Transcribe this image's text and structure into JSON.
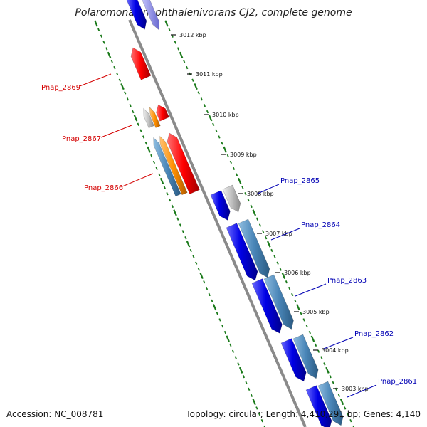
{
  "title": "Polaromonas naphthalenivorans CJ2, complete genome",
  "footer": {
    "accession": "Accession: NC_008781",
    "summary": "Topology: circular; Length: 4,410,291 bp; Genes: 4,140"
  },
  "colors": {
    "backbone": "#8a8a8a",
    "tick": "#1a7a1a",
    "reverse_label": "#d40000",
    "forward_label": "#0000b4",
    "gene_blue": "#0000e6",
    "gene_steel": "#4a86b8",
    "gene_red": "#ff0000",
    "gene_orange": "#ff9000",
    "gene_gray": "#b8b8b8"
  },
  "scale_marks": [
    {
      "label": "3012 kbp"
    },
    {
      "label": "3011 kbp"
    },
    {
      "label": "3010 kbp"
    },
    {
      "label": "3009 kbp"
    },
    {
      "label": "3008 kbp"
    },
    {
      "label": "3007 kbp"
    },
    {
      "label": "3006 kbp"
    },
    {
      "label": "3005 kbp"
    },
    {
      "label": "3004 kbp"
    },
    {
      "label": "3003 kbp"
    }
  ],
  "gene_labels": [
    {
      "name": "Pnap_2869",
      "strand": "reverse"
    },
    {
      "name": "Pnap_2867",
      "strand": "reverse"
    },
    {
      "name": "Pnap_2866",
      "strand": "reverse"
    },
    {
      "name": "Pnap_2865",
      "strand": "forward"
    },
    {
      "name": "Pnap_2864",
      "strand": "forward"
    },
    {
      "name": "Pnap_2863",
      "strand": "forward"
    },
    {
      "name": "Pnap_2862",
      "strand": "forward"
    },
    {
      "name": "Pnap_2861",
      "strand": "forward"
    }
  ]
}
